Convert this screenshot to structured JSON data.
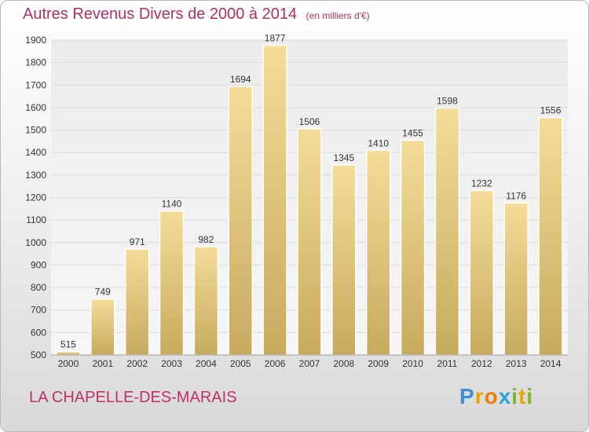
{
  "title_main": "Autres Revenus Divers de 2000 à 2014",
  "title_unit": "(en milliers d'€)",
  "commune": "LA CHAPELLE-DES-MARAIS",
  "logo_letters": [
    "P",
    "r",
    "o",
    "x",
    "i",
    "t",
    "i"
  ],
  "chart_data": {
    "type": "bar",
    "title": "Autres Revenus Divers de 2000 à 2014",
    "subtitle": "(en milliers d'€)",
    "xlabel": "",
    "ylabel": "",
    "categories": [
      "2000",
      "2001",
      "2002",
      "2003",
      "2004",
      "2005",
      "2006",
      "2007",
      "2008",
      "2009",
      "2010",
      "2011",
      "2012",
      "2013",
      "2014"
    ],
    "values": [
      515,
      749,
      971,
      1140,
      982,
      1694,
      1877,
      1506,
      1345,
      1410,
      1455,
      1598,
      1232,
      1176,
      1556
    ],
    "ylim": [
      500,
      1900
    ],
    "yticks": [
      500,
      600,
      700,
      800,
      900,
      1000,
      1100,
      1200,
      1300,
      1400,
      1500,
      1600,
      1700,
      1800,
      1900
    ],
    "grid": true,
    "bar_color": "#e2c67c",
    "data_labels": true
  }
}
